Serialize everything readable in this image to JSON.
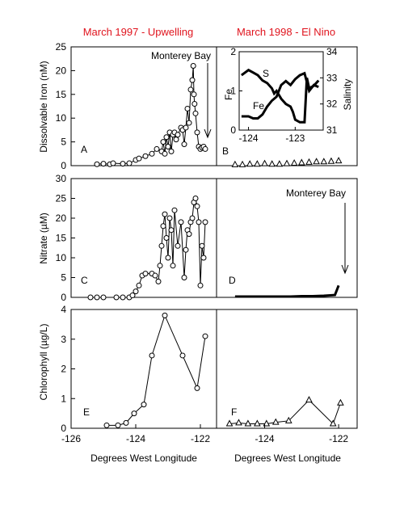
{
  "titles": {
    "left": "March 1997 - Upwelling",
    "right": "March 1998 - El Nino"
  },
  "axis_labels": {
    "x_left": "Degrees West Longitude",
    "x_right": "Degrees West Longitude",
    "iron": "Dissolvable Iron (nM)",
    "nitrate": "Nitrate (µM)",
    "chlorophyll": "Chlorophyll (µg/L)"
  },
  "panel_letters": {
    "A": "A",
    "B": "B",
    "C": "C",
    "D": "D",
    "E": "E",
    "F": "F"
  },
  "annotations": {
    "monterey_top": "Monterey Bay",
    "monterey_mid": "Monterey Bay"
  },
  "inset": {
    "s_label": "S",
    "fe_label": "Fe",
    "y_left_label": "Fe",
    "y_right_label": "Salinity"
  },
  "chart_data": [
    {
      "type": "scatter",
      "panel": "A",
      "ylabel": "Dissolvable Iron (nM)",
      "ylim": [
        0,
        25
      ],
      "xlim": [
        -126,
        -121.5
      ],
      "y_ticks": [
        "0",
        "5",
        "10",
        "15",
        "20",
        "25"
      ],
      "series": [
        {
          "x": [
            -125.2,
            -125.0,
            -124.8,
            -124.7,
            -124.4,
            -124.2,
            -124.0,
            -123.9,
            -123.7,
            -123.5,
            -123.35,
            -123.2,
            -123.15,
            -123.1,
            -123.05,
            -123.0,
            -122.95,
            -122.9,
            -122.85,
            -122.8,
            -122.75,
            -122.7,
            -122.6,
            -122.55,
            -122.5,
            -122.45,
            -122.4,
            -122.35,
            -122.3,
            -122.25,
            -122.22,
            -122.2,
            -122.18,
            -122.15,
            -122.1,
            -122.05,
            -122.0,
            -121.95,
            -121.9,
            -121.85
          ],
          "y": [
            0.3,
            0.4,
            0.3,
            0.5,
            0.4,
            0.5,
            1.2,
            1.5,
            2.0,
            2.5,
            3.5,
            3.0,
            5.0,
            2.5,
            6.0,
            4.0,
            7.0,
            3.0,
            6.5,
            7.0,
            5.5,
            6.5,
            8.0,
            7.5,
            4.5,
            8.0,
            12.0,
            9.0,
            16.0,
            18.0,
            21.0,
            15.0,
            13.0,
            11.0,
            7.0,
            4.0,
            3.5,
            3.8,
            4.0,
            3.5
          ]
        }
      ]
    },
    {
      "type": "scatter",
      "panel": "B",
      "ylim": [
        0,
        25
      ],
      "xlim": [
        -126,
        -121.5
      ],
      "series": [
        {
          "x": [
            -124.8,
            -124.6,
            -124.4,
            -124.2,
            -124.0,
            -123.8,
            -123.6,
            -123.4,
            -123.2,
            -123.0,
            -122.8,
            -122.6,
            -122.4,
            -122.2,
            -122.0
          ],
          "y": [
            0.2,
            0.2,
            0.3,
            0.3,
            0.4,
            0.3,
            0.3,
            0.4,
            0.5,
            0.6,
            0.7,
            0.8,
            0.8,
            0.9,
            1.0
          ]
        }
      ],
      "inset": {
        "type": "line",
        "xlim": [
          -124.2,
          -122.4
        ],
        "x_ticks": [
          "-124",
          "-123"
        ],
        "y_left_lim": [
          0,
          2
        ],
        "y_left_ticks": [
          "0",
          "1",
          "2"
        ],
        "y_right_lim": [
          31,
          34
        ],
        "y_right_ticks": [
          "31",
          "32",
          "33",
          "34"
        ],
        "series": [
          {
            "name": "S",
            "x": [
              -124.15,
              -124.0,
              -123.9,
              -123.8,
              -123.7,
              -123.6,
              -123.5,
              -123.45,
              -123.4,
              -123.3,
              -123.2,
              -123.1,
              -123.05,
              -123.0,
              -122.9,
              -122.8,
              -122.75,
              -122.7,
              -122.6,
              -122.5
            ],
            "y": [
              33.1,
              33.3,
              33.2,
              33.1,
              32.9,
              32.8,
              32.6,
              32.4,
              32.5,
              32.2,
              32.0,
              31.9,
              31.7,
              31.4,
              31.3,
              31.3,
              33.0,
              32.6,
              32.7,
              32.9
            ]
          },
          {
            "name": "Fe",
            "x": [
              -124.15,
              -124.0,
              -123.9,
              -123.8,
              -123.7,
              -123.6,
              -123.5,
              -123.4,
              -123.3,
              -123.2,
              -123.1,
              -123.0,
              -122.9,
              -122.8,
              -122.7,
              -122.6,
              -122.5
            ],
            "y": [
              0.35,
              0.35,
              0.3,
              0.3,
              0.4,
              0.6,
              0.75,
              0.85,
              1.15,
              1.25,
              1.15,
              1.3,
              1.4,
              1.45,
              1.0,
              1.15,
              1.1
            ]
          }
        ]
      }
    },
    {
      "type": "scatter",
      "panel": "C",
      "ylabel": "Nitrate (µM)",
      "ylim": [
        0,
        30
      ],
      "xlim": [
        -126,
        -121.5
      ],
      "y_ticks": [
        "0",
        "5",
        "10",
        "15",
        "20",
        "25",
        "30"
      ],
      "series": [
        {
          "x": [
            -125.4,
            -125.2,
            -125.0,
            -124.6,
            -124.4,
            -124.2,
            -124.1,
            -124.0,
            -123.9,
            -123.8,
            -123.7,
            -123.5,
            -123.4,
            -123.3,
            -123.25,
            -123.2,
            -123.15,
            -123.1,
            -123.05,
            -123.0,
            -122.95,
            -122.9,
            -122.85,
            -122.8,
            -122.7,
            -122.6,
            -122.5,
            -122.45,
            -122.4,
            -122.35,
            -122.3,
            -122.25,
            -122.2,
            -122.15,
            -122.1,
            -122.05,
            -122.0,
            -121.95,
            -121.9,
            -121.85
          ],
          "y": [
            0,
            0,
            0,
            0,
            0,
            0,
            0.5,
            1.5,
            3.0,
            5.5,
            6.0,
            6.0,
            5.5,
            4.0,
            8.0,
            13.0,
            18.0,
            21.0,
            15.0,
            10.0,
            20.0,
            17.0,
            8.0,
            22.0,
            13.0,
            19.0,
            5.0,
            12.0,
            17.0,
            16.0,
            19.0,
            20.0,
            24.0,
            25.0,
            23.0,
            19.0,
            3.0,
            13.0,
            10.0,
            19.0
          ]
        }
      ]
    },
    {
      "type": "scatter",
      "panel": "D",
      "ylim": [
        0,
        30
      ],
      "xlim": [
        -126,
        -121.5
      ],
      "series": [
        {
          "x": [
            -124.8,
            -124.5,
            -124.2,
            -123.9,
            -123.6,
            -123.3,
            -123.0,
            -122.7,
            -122.4,
            -122.1,
            -122.0
          ],
          "y": [
            0.2,
            0.2,
            0.2,
            0.2,
            0.2,
            0.2,
            0.3,
            0.3,
            0.4,
            0.6,
            3.0
          ]
        }
      ]
    },
    {
      "type": "line",
      "panel": "E",
      "ylabel": "Chlorophyll (µg/L)",
      "ylim": [
        0,
        4
      ],
      "xlim": [
        -126,
        -121.5
      ],
      "x_ticks": [
        "-126",
        "-124",
        "-122"
      ],
      "y_ticks": [
        "0",
        "1",
        "2",
        "3",
        "4"
      ],
      "xlabel": "Degrees West Longitude",
      "series": [
        {
          "x": [
            -124.9,
            -124.55,
            -124.3,
            -124.05,
            -123.75,
            -123.5,
            -123.1,
            -122.55,
            -122.1,
            -121.85
          ],
          "y": [
            0.1,
            0.1,
            0.18,
            0.5,
            0.8,
            2.45,
            3.8,
            2.45,
            1.35,
            3.1
          ]
        }
      ]
    },
    {
      "type": "line",
      "panel": "F",
      "ylim": [
        0,
        4
      ],
      "xlim": [
        -125.3,
        -121.5
      ],
      "x_ticks": [
        "-124",
        "-122"
      ],
      "xlabel": "Degrees West Longitude",
      "series": [
        {
          "x": [
            -124.95,
            -124.7,
            -124.45,
            -124.2,
            -123.95,
            -123.7,
            -123.35,
            -122.8,
            -122.15,
            -121.95
          ],
          "y": [
            0.15,
            0.18,
            0.15,
            0.15,
            0.15,
            0.2,
            0.25,
            0.95,
            0.15,
            0.85
          ]
        }
      ]
    }
  ]
}
